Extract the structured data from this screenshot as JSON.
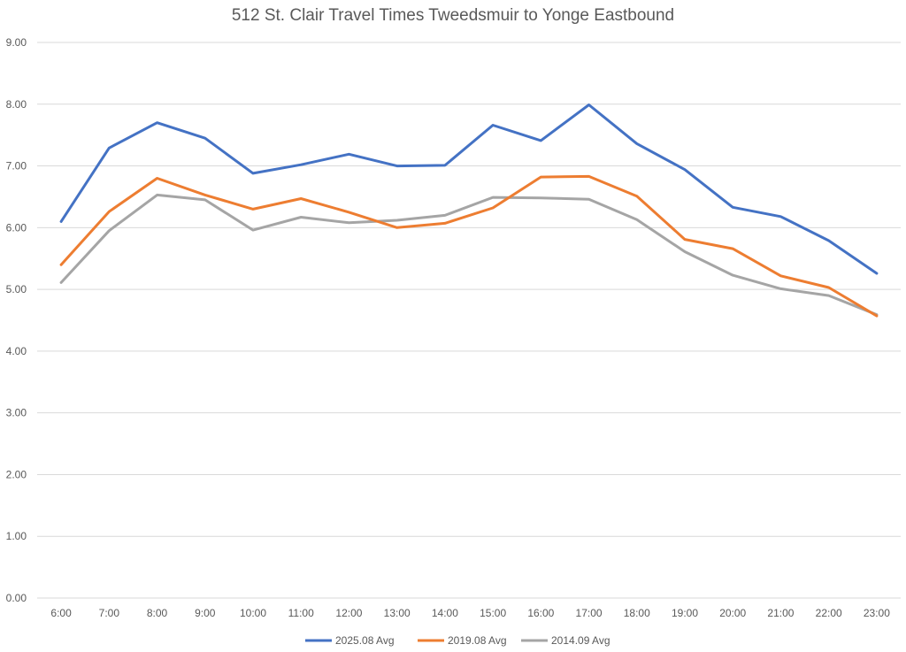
{
  "chart_data": {
    "type": "line",
    "title": "512 St. Clair Travel Times Tweedsmuir to Yonge Eastbound",
    "xlabel": "",
    "ylabel": "",
    "ylim": [
      0,
      9
    ],
    "y_ticks": [
      "0.00",
      "1.00",
      "2.00",
      "3.00",
      "4.00",
      "5.00",
      "6.00",
      "7.00",
      "8.00",
      "9.00"
    ],
    "grid": true,
    "legend_position": "bottom",
    "categories": [
      "6:00",
      "7:00",
      "8:00",
      "9:00",
      "10:00",
      "11:00",
      "12:00",
      "13:00",
      "14:00",
      "15:00",
      "16:00",
      "17:00",
      "18:00",
      "19:00",
      "20:00",
      "21:00",
      "22:00",
      "23:00"
    ],
    "series": [
      {
        "name": "2025.08 Avg",
        "color": "#4472C4",
        "values": [
          6.1,
          7.29,
          7.7,
          7.45,
          6.88,
          7.02,
          7.19,
          7.0,
          7.01,
          7.66,
          7.41,
          7.99,
          7.36,
          6.94,
          6.33,
          6.18,
          5.79,
          5.26
        ]
      },
      {
        "name": "2019.08 Avg",
        "color": "#ED7D31",
        "values": [
          5.4,
          6.26,
          6.8,
          6.53,
          6.3,
          6.47,
          6.25,
          6.0,
          6.07,
          6.32,
          6.82,
          6.83,
          6.51,
          5.81,
          5.66,
          5.22,
          5.03,
          4.57
        ]
      },
      {
        "name": "2014.09 Avg",
        "color": "#A5A5A5",
        "values": [
          5.11,
          5.95,
          6.53,
          6.45,
          5.96,
          6.17,
          6.08,
          6.12,
          6.2,
          6.49,
          6.48,
          6.46,
          6.13,
          5.61,
          5.23,
          5.01,
          4.9,
          4.59
        ]
      }
    ]
  }
}
